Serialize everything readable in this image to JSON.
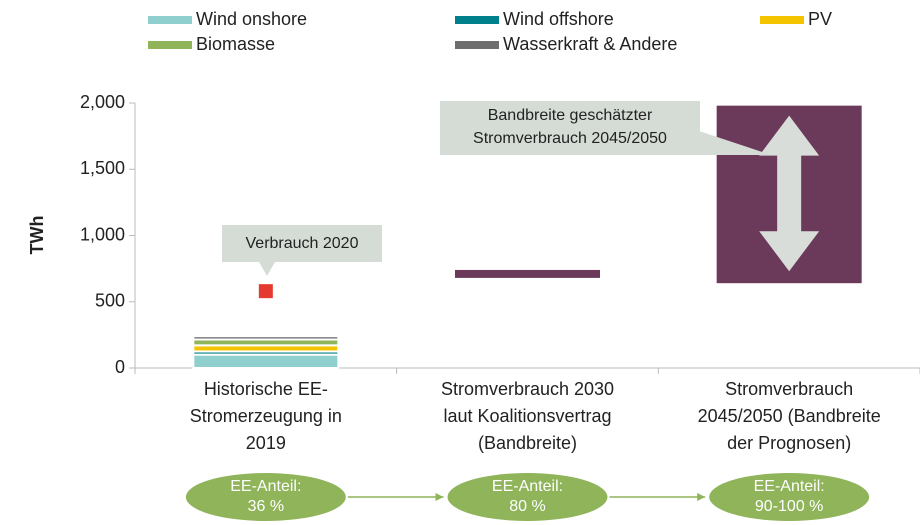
{
  "chart_data": {
    "type": "bar",
    "y_label": "TWh",
    "ylim": [
      0,
      2000
    ],
    "yticks": [
      0,
      500,
      {
        "value": 1000,
        "label": "1,000"
      },
      {
        "value": 1500,
        "label": "1,500"
      },
      {
        "value": 2000,
        "label": "2,000"
      }
    ],
    "categories": [
      [
        "Historische EE-",
        "Stromerzeugung in",
        "2019"
      ],
      [
        "Stromverbrauch 2030",
        "laut Koalitionsvertrag",
        "(Bandbreite)"
      ],
      [
        "Stromverbrauch",
        "2045/2050 (Bandbreite",
        "der Prognosen)"
      ]
    ],
    "series": [
      {
        "name": "Wind onshore",
        "color": "#8fd0cf",
        "values": [
          101,
          null,
          null
        ]
      },
      {
        "name": "Wind offshore",
        "color": "#00808a",
        "values": [
          24,
          null,
          null
        ]
      },
      {
        "name": "PV",
        "color": "#f5c400",
        "values": [
          46,
          null,
          null
        ]
      },
      {
        "name": "Biomasse",
        "color": "#8fb45a",
        "values": [
          44,
          null,
          null
        ]
      },
      {
        "name": "Wasserkraft & Andere",
        "color": "#6d6d6d",
        "values": [
          25,
          null,
          null
        ]
      }
    ],
    "ranges": [
      null,
      [
        680,
        740
      ],
      [
        640,
        1980
      ]
    ],
    "range_color": "#6b3a5a",
    "marker": {
      "text": "Verbrauch 2020",
      "value": 580,
      "color": "#e53a2f"
    },
    "range_note": [
      "Bandbreite geschätzter",
      "Stromverbrauch 2045/2050"
    ],
    "shares": [
      [
        "EE-Anteil:",
        "36 %"
      ],
      [
        "EE-Anteil:",
        "80 %"
      ],
      [
        "EE-Anteil:",
        "90-100 %"
      ]
    ],
    "share_color": "#8fb45a"
  }
}
